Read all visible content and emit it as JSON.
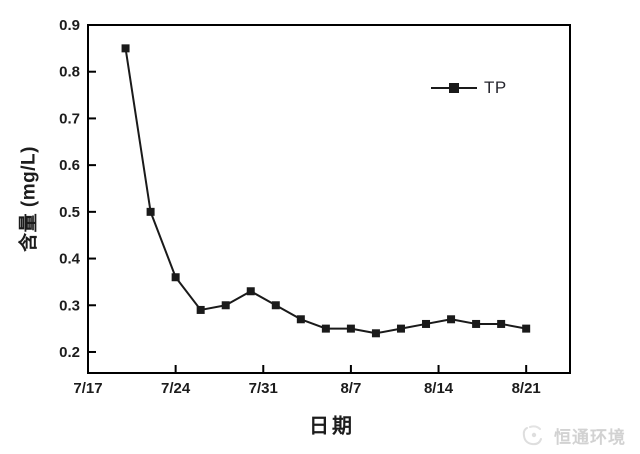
{
  "chart_data": {
    "type": "line",
    "title": "",
    "xlabel": "日期",
    "ylabel": "含量 (mg/L)",
    "grid": false,
    "x_axis": {
      "tick_labels": [
        "7/17",
        "7/24",
        "7/31",
        "8/7",
        "8/14",
        "8/21"
      ],
      "tick_days": [
        0,
        7,
        14,
        21,
        28,
        35
      ],
      "xlim_days": [
        0,
        38.5
      ]
    },
    "y_axis": {
      "tick_labels": [
        "0.2",
        "0.3",
        "0.4",
        "0.5",
        "0.6",
        "0.7",
        "0.8",
        "0.9"
      ],
      "tick_values": [
        0.2,
        0.3,
        0.4,
        0.5,
        0.6,
        0.7,
        0.8,
        0.9
      ],
      "ylim": [
        0.155,
        0.9
      ]
    },
    "series": [
      {
        "name": "TP",
        "marker": "square",
        "color": "#1a1a1a",
        "dates": [
          "7/20",
          "7/22",
          "7/24",
          "7/26",
          "7/28",
          "7/30",
          "8/1",
          "8/3",
          "8/5",
          "8/7",
          "8/9",
          "8/11",
          "8/13",
          "8/15",
          "8/17",
          "8/19",
          "8/21"
        ],
        "x_days": [
          3,
          5,
          7,
          9,
          11,
          13,
          15,
          17,
          19,
          21,
          23,
          25,
          27,
          29,
          31,
          33,
          35
        ],
        "values": [
          0.85,
          0.5,
          0.36,
          0.29,
          0.3,
          0.33,
          0.3,
          0.27,
          0.25,
          0.25,
          0.24,
          0.25,
          0.26,
          0.27,
          0.26,
          0.26,
          0.25
        ]
      }
    ],
    "legend": {
      "label": "TP",
      "position": "upper-right-inside"
    }
  },
  "watermark": {
    "text": "恒通环境",
    "color": "#d2d2d2"
  },
  "colors": {
    "line": "#1a1a1a",
    "axis": "#000000",
    "text": "#1c1c1c",
    "background": "#ffffff"
  }
}
